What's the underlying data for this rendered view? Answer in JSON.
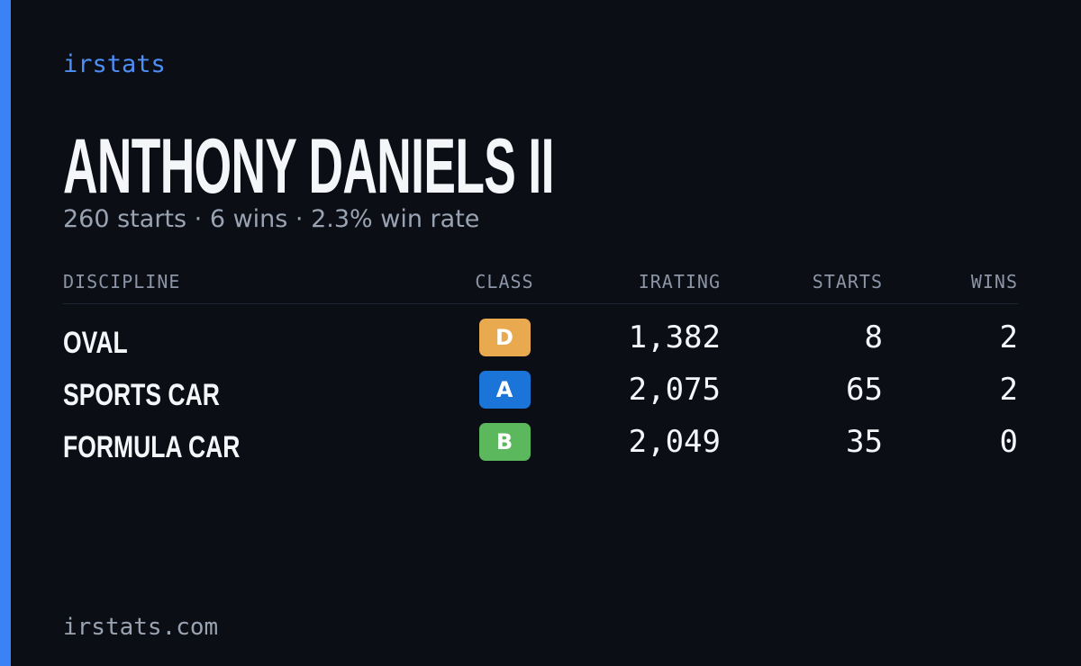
{
  "brand": "irstats",
  "name": "ANTHONY DANIELS II",
  "summary": "260 starts · 6 wins · 2.3% win rate",
  "table": {
    "headers": [
      "DISCIPLINE",
      "CLASS",
      "IRATING",
      "STARTS",
      "WINS"
    ],
    "rows": [
      [
        "OVAL",
        "D",
        "1,382",
        "8",
        "2"
      ],
      [
        "SPORTS CAR",
        "A",
        "2,075",
        "65",
        "2"
      ],
      [
        "FORMULA CAR",
        "B",
        "2,049",
        "35",
        "0"
      ]
    ],
    "class_colors": [
      "#e8a94f",
      "#1b74d8",
      "#5cb85c"
    ]
  },
  "footer": "irstats.com"
}
